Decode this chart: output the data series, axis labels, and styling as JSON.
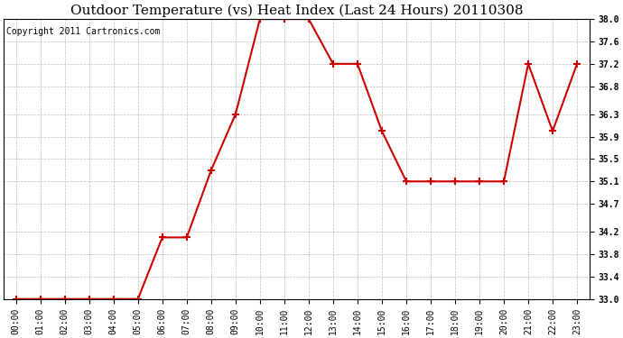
{
  "title": "Outdoor Temperature (vs) Heat Index (Last 24 Hours) 20110308",
  "copyright": "Copyright 2011 Cartronics.com",
  "x_labels": [
    "00:00",
    "01:00",
    "02:00",
    "03:00",
    "04:00",
    "05:00",
    "06:00",
    "07:00",
    "08:00",
    "09:00",
    "10:00",
    "11:00",
    "12:00",
    "13:00",
    "14:00",
    "15:00",
    "16:00",
    "17:00",
    "18:00",
    "19:00",
    "20:00",
    "21:00",
    "22:00",
    "23:00"
  ],
  "y_values": [
    33.0,
    33.0,
    33.0,
    33.0,
    33.0,
    33.0,
    34.1,
    34.1,
    35.3,
    36.3,
    38.0,
    38.0,
    38.0,
    37.2,
    37.2,
    36.0,
    35.1,
    35.1,
    35.1,
    35.1,
    35.1,
    37.2,
    36.0,
    37.2
  ],
  "line_color": "#cc0000",
  "marker": "+",
  "marker_color": "#cc0000",
  "marker_size": 6,
  "marker_linewidth": 1.5,
  "background_color": "#ffffff",
  "grid_color": "#bbbbbb",
  "ylim": [
    33.0,
    38.0
  ],
  "yticks": [
    33.0,
    33.4,
    33.8,
    34.2,
    34.7,
    35.1,
    35.5,
    35.9,
    36.3,
    36.8,
    37.2,
    37.6,
    38.0
  ],
  "title_fontsize": 11,
  "copyright_fontsize": 7,
  "tick_fontsize": 7,
  "linewidth": 1.5
}
